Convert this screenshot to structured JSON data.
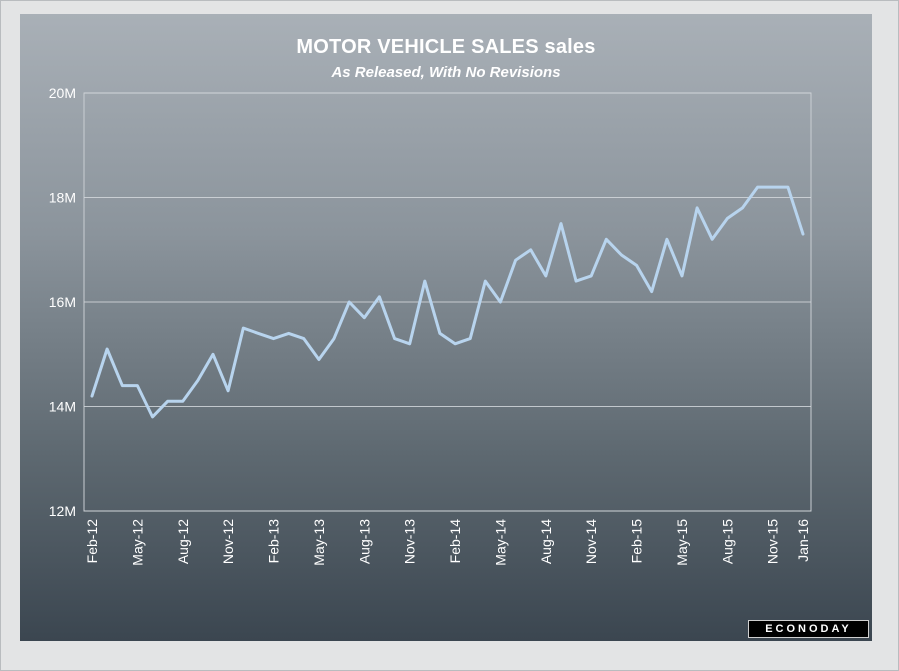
{
  "chart_data": {
    "type": "line",
    "title": "MOTOR VEHICLE SALES sales",
    "subtitle": "As Released, With No Revisions",
    "xlabel": "",
    "ylabel": "",
    "ylim": [
      12,
      20
    ],
    "yticks": [
      12,
      14,
      16,
      18,
      20
    ],
    "ytick_labels": [
      "12M",
      "14M",
      "16M",
      "18M",
      "20M"
    ],
    "xtick_labels": [
      "Feb-12",
      "May-12",
      "Aug-12",
      "Nov-12",
      "Feb-13",
      "May-13",
      "Aug-13",
      "Nov-13",
      "Feb-14",
      "May-14",
      "Aug-14",
      "Nov-14",
      "Feb-15",
      "May-15",
      "Aug-15",
      "Nov-15",
      "Jan-16"
    ],
    "xtick_indices": [
      0,
      3,
      6,
      9,
      12,
      15,
      18,
      21,
      24,
      27,
      30,
      33,
      36,
      39,
      42,
      45,
      47
    ],
    "grid": true,
    "line_color": "#b8d4ee",
    "series": [
      {
        "name": "Motor vehicle sales",
        "unit": "M",
        "x": [
          "Feb-12",
          "Mar-12",
          "Apr-12",
          "May-12",
          "Jun-12",
          "Jul-12",
          "Aug-12",
          "Sep-12",
          "Oct-12",
          "Nov-12",
          "Dec-12",
          "Jan-13",
          "Feb-13",
          "Mar-13",
          "Apr-13",
          "May-13",
          "Jun-13",
          "Jul-13",
          "Aug-13",
          "Sep-13",
          "Oct-13",
          "Nov-13",
          "Dec-13",
          "Jan-14",
          "Feb-14",
          "Mar-14",
          "Apr-14",
          "May-14",
          "Jun-14",
          "Jul-14",
          "Aug-14",
          "Sep-14",
          "Oct-14",
          "Nov-14",
          "Dec-14",
          "Jan-15",
          "Feb-15",
          "Mar-15",
          "Apr-15",
          "May-15",
          "Jun-15",
          "Jul-15",
          "Aug-15",
          "Sep-15",
          "Oct-15",
          "Nov-15",
          "Dec-15",
          "Jan-16"
        ],
        "values": [
          14.2,
          15.1,
          14.4,
          14.4,
          13.8,
          14.1,
          14.1,
          14.5,
          15.0,
          14.3,
          15.5,
          15.4,
          15.3,
          15.4,
          15.3,
          14.9,
          15.3,
          16.0,
          15.7,
          16.1,
          15.3,
          15.2,
          16.4,
          15.4,
          15.2,
          15.3,
          16.4,
          16.0,
          16.8,
          17.0,
          16.5,
          17.5,
          16.4,
          16.5,
          17.2,
          16.9,
          16.7,
          16.2,
          17.2,
          16.5,
          17.8,
          17.2,
          17.6,
          17.8,
          18.2,
          18.2,
          18.2,
          17.3
        ]
      }
    ]
  },
  "branding": {
    "logo_text": "ECONODAY"
  }
}
